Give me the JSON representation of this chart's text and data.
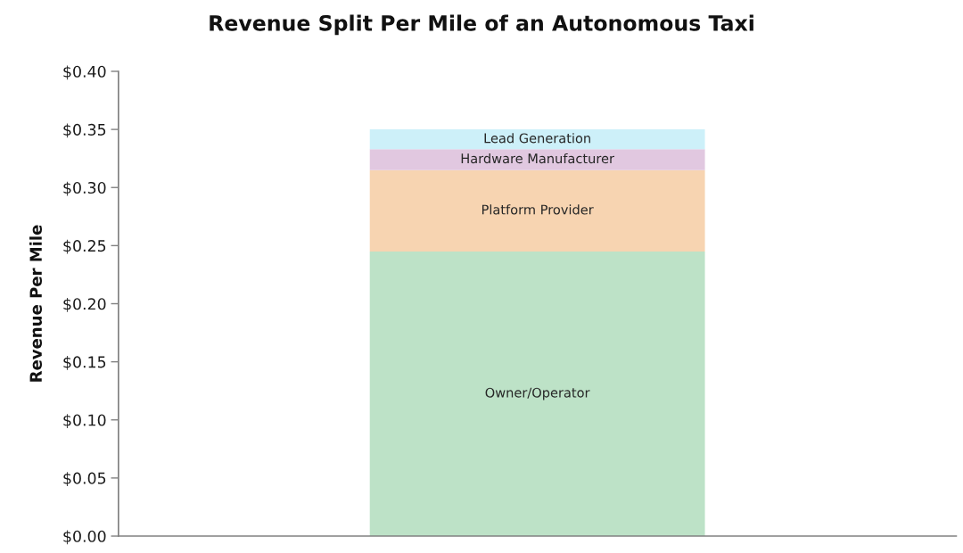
{
  "chart_data": {
    "type": "bar",
    "title": "Revenue Split Per Mile of an Autonomous Taxi",
    "ylabel": "Revenue Per Mile",
    "categories": [
      null
    ],
    "stacked": true,
    "legend": false,
    "grid": false,
    "tick_labels": "y",
    "series": [
      {
        "name": "Owner/Operator",
        "color": "#bde2c7",
        "values": [
          0.245
        ]
      },
      {
        "name": "Platform Provider",
        "color": "#f7d4b1",
        "values": [
          0.07
        ]
      },
      {
        "name": "Hardware Manufacturer",
        "color": "#e1c8e0",
        "values": [
          0.018
        ]
      },
      {
        "name": "Lead Generation",
        "color": "#cdf0f9",
        "values": [
          0.017
        ]
      }
    ],
    "ylim": [
      0,
      0.4
    ],
    "yticks": [
      {
        "value": 0,
        "label": "$0.00"
      },
      {
        "value": 0.05,
        "label": "$0.05"
      },
      {
        "value": 0.1,
        "label": "$0.10"
      },
      {
        "value": 0.15,
        "label": "$0.15"
      },
      {
        "value": 0.2,
        "label": "$0.20"
      },
      {
        "value": 0.25,
        "label": "$0.25"
      },
      {
        "value": 0.3,
        "label": "$0.30"
      },
      {
        "value": 0.35,
        "label": "$0.35"
      },
      {
        "value": 0.4,
        "label": "$0.40"
      }
    ]
  }
}
